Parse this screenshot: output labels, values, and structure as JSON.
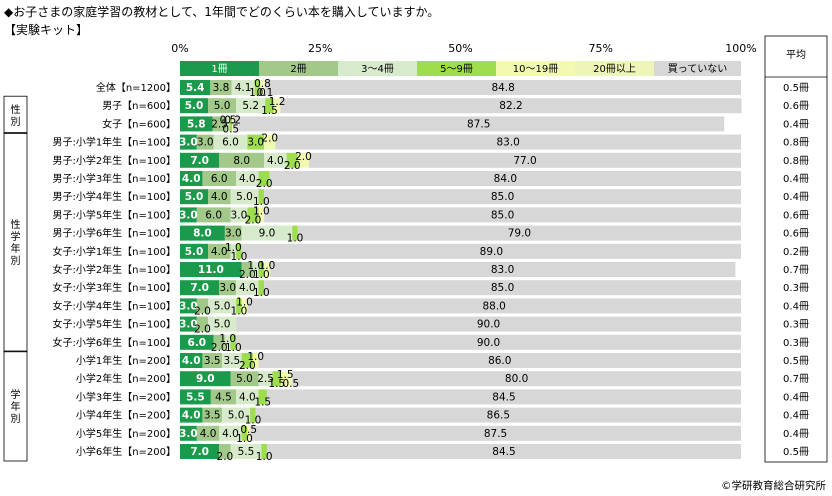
{
  "title": "◆お子さまの家庭学習の教材として、1年間でどのくらい本を購入していますか。",
  "subtitle": "【実験キット】",
  "footer": "©学研教育総合研究所",
  "average_header": "平均",
  "axis_ticks": [
    "0%",
    "25%",
    "50%",
    "75%",
    "100%"
  ],
  "colors": [
    "#1a9a4a",
    "#a3c98a",
    "#d7eacb",
    "#9ddd4e",
    "#f1fab0",
    "#eef5b8",
    "#d7d7d7"
  ],
  "chart_data": {
    "type": "bar",
    "stacked": true,
    "orientation": "horizontal",
    "xlim": [
      0,
      100
    ],
    "categories": [
      "全体【n=1200】",
      "男子【n=600】",
      "女子【n=600】",
      "男子:小学1年生【n=100】",
      "男子:小学2年生【n=100】",
      "男子:小学3年生【n=100】",
      "男子:小学4年生【n=100】",
      "男子:小学5年生【n=100】",
      "男子:小学6年生【n=100】",
      "女子:小学1年生【n=100】",
      "女子:小学2年生【n=100】",
      "女子:小学3年生【n=100】",
      "女子:小学4年生【n=100】",
      "女子:小学5年生【n=100】",
      "女子:小学6年生【n=100】",
      "小学1年生【n=200】",
      "小学2年生【n=200】",
      "小学3年生【n=200】",
      "小学4年生【n=200】",
      "小学5年生【n=200】",
      "小学6年生【n=200】"
    ],
    "series": [
      {
        "name": "1冊",
        "values": [
          5.4,
          5.0,
          5.8,
          3.0,
          7.0,
          4.0,
          5.0,
          3.0,
          8.0,
          5.0,
          11.0,
          7.0,
          3.0,
          3.0,
          6.0,
          4.0,
          9.0,
          5.5,
          4.0,
          3.0,
          7.0
        ]
      },
      {
        "name": "2冊",
        "values": [
          3.8,
          5.0,
          2.5,
          3.0,
          8.0,
          6.0,
          4.0,
          6.0,
          3.0,
          4.0,
          2.0,
          3.0,
          2.0,
          2.0,
          2.0,
          3.5,
          5.0,
          4.5,
          3.5,
          4.0,
          2.0
        ]
      },
      {
        "name": "3～4冊",
        "values": [
          4.1,
          5.2,
          0.5,
          6.0,
          4.0,
          4.0,
          5.0,
          3.0,
          9.0,
          1.0,
          1.0,
          4.0,
          5.0,
          5.0,
          1.0,
          3.5,
          2.5,
          4.0,
          5.0,
          4.0,
          5.5
        ]
      },
      {
        "name": "5～9冊",
        "values": [
          1.0,
          1.5,
          0.5,
          3.0,
          2.0,
          2.0,
          1.0,
          2.0,
          1.0,
          1.0,
          1.0,
          1.0,
          1.0,
          0.0,
          1.0,
          2.0,
          1.5,
          1.5,
          1.0,
          1.0,
          1.0
        ]
      },
      {
        "name": "10～19冊",
        "values": [
          0.8,
          1.2,
          0.2,
          2.0,
          2.0,
          0.0,
          0.0,
          1.0,
          0.0,
          0.0,
          1.0,
          0.0,
          1.0,
          0.0,
          0.0,
          1.0,
          1.5,
          0.0,
          0.0,
          0.5,
          0.0
        ]
      },
      {
        "name": "20冊以上",
        "values": [
          0.1,
          0.0,
          0.0,
          0.0,
          0.0,
          0.0,
          0.0,
          0.0,
          0.0,
          0.0,
          0.0,
          0.0,
          0.0,
          0.0,
          0.0,
          0.0,
          0.5,
          0.0,
          0.0,
          0.0,
          0.0
        ]
      },
      {
        "name": "買っていない",
        "values": [
          84.8,
          82.2,
          87.5,
          83.0,
          77.0,
          84.0,
          85.0,
          85.0,
          79.0,
          89.0,
          83.0,
          85.0,
          88.0,
          90.0,
          90.0,
          86.0,
          80.0,
          84.5,
          86.5,
          87.5,
          84.5
        ]
      }
    ],
    "data_labels": [
      [
        "5.4",
        "3.8",
        "4.1",
        "1.0",
        "0.8",
        "0.1",
        "84.8"
      ],
      [
        "5.0",
        "5.0",
        "5.2",
        "1.5",
        "1.2",
        "",
        "82.2"
      ],
      [
        "5.8",
        "2.5",
        "0.5",
        "0.5",
        "0.2",
        "",
        "87.5"
      ],
      [
        "3.0",
        "3.0",
        "6.0",
        "3.0",
        "2.0",
        "",
        "83.0"
      ],
      [
        "7.0",
        "8.0",
        "4.0",
        "2.0",
        "2.0",
        "",
        "77.0"
      ],
      [
        "4.0",
        "6.0",
        "4.0",
        "2.0",
        "",
        "",
        "84.0"
      ],
      [
        "5.0",
        "4.0",
        "5.0",
        "1.0",
        "",
        "",
        "85.0"
      ],
      [
        "3.0",
        "6.0",
        "3.0",
        "2.0",
        "1.0",
        "",
        "85.0"
      ],
      [
        "8.0",
        "3.0",
        "9.0",
        "1.0",
        "",
        "",
        "79.0"
      ],
      [
        "5.0",
        "4.0",
        "1.0",
        "1.0",
        "",
        "",
        "89.0"
      ],
      [
        "11.0",
        "2.0",
        "1.0",
        "1.0",
        "1.0",
        "",
        "83.0"
      ],
      [
        "7.0",
        "3.0",
        "4.0",
        "1.0",
        "",
        "",
        "85.0"
      ],
      [
        "3.0",
        "2.0",
        "5.0",
        "1.0",
        "1.0",
        "",
        "88.0"
      ],
      [
        "3.0",
        "2.0",
        "5.0",
        "",
        "",
        "",
        "90.0"
      ],
      [
        "6.0",
        "2.0",
        "1.0",
        "1.0",
        "",
        "",
        "90.0"
      ],
      [
        "4.0",
        "3.5",
        "3.5",
        "2.0",
        "1.0",
        "",
        "86.0"
      ],
      [
        "9.0",
        "5.0",
        "2.5",
        "1.5",
        "1.5",
        "0.5",
        "80.0"
      ],
      [
        "5.5",
        "4.5",
        "4.0",
        "1.5",
        "",
        "",
        "84.5"
      ],
      [
        "4.0",
        "3.5",
        "5.0",
        "1.0",
        "",
        "",
        "86.5"
      ],
      [
        "3.0",
        "4.0",
        "4.0",
        "1.0",
        "0.5",
        "",
        "87.5"
      ],
      [
        "7.0",
        "2.0",
        "5.5",
        "1.0",
        "",
        "",
        "84.5"
      ]
    ],
    "averages": [
      "0.5冊",
      "0.6冊",
      "0.4冊",
      "0.8冊",
      "0.8冊",
      "0.4冊",
      "0.4冊",
      "0.6冊",
      "0.6冊",
      "0.2冊",
      "0.7冊",
      "0.3冊",
      "0.4冊",
      "0.3冊",
      "0.3冊",
      "0.5冊",
      "0.7冊",
      "0.4冊",
      "0.4冊",
      "0.4冊",
      "0.5冊"
    ],
    "groups": [
      {
        "label": "性別",
        "rows": [
          1,
          2
        ]
      },
      {
        "label": "性学年別",
        "rows": [
          3,
          14
        ]
      },
      {
        "label": "学年別",
        "rows": [
          15,
          20
        ]
      }
    ]
  }
}
